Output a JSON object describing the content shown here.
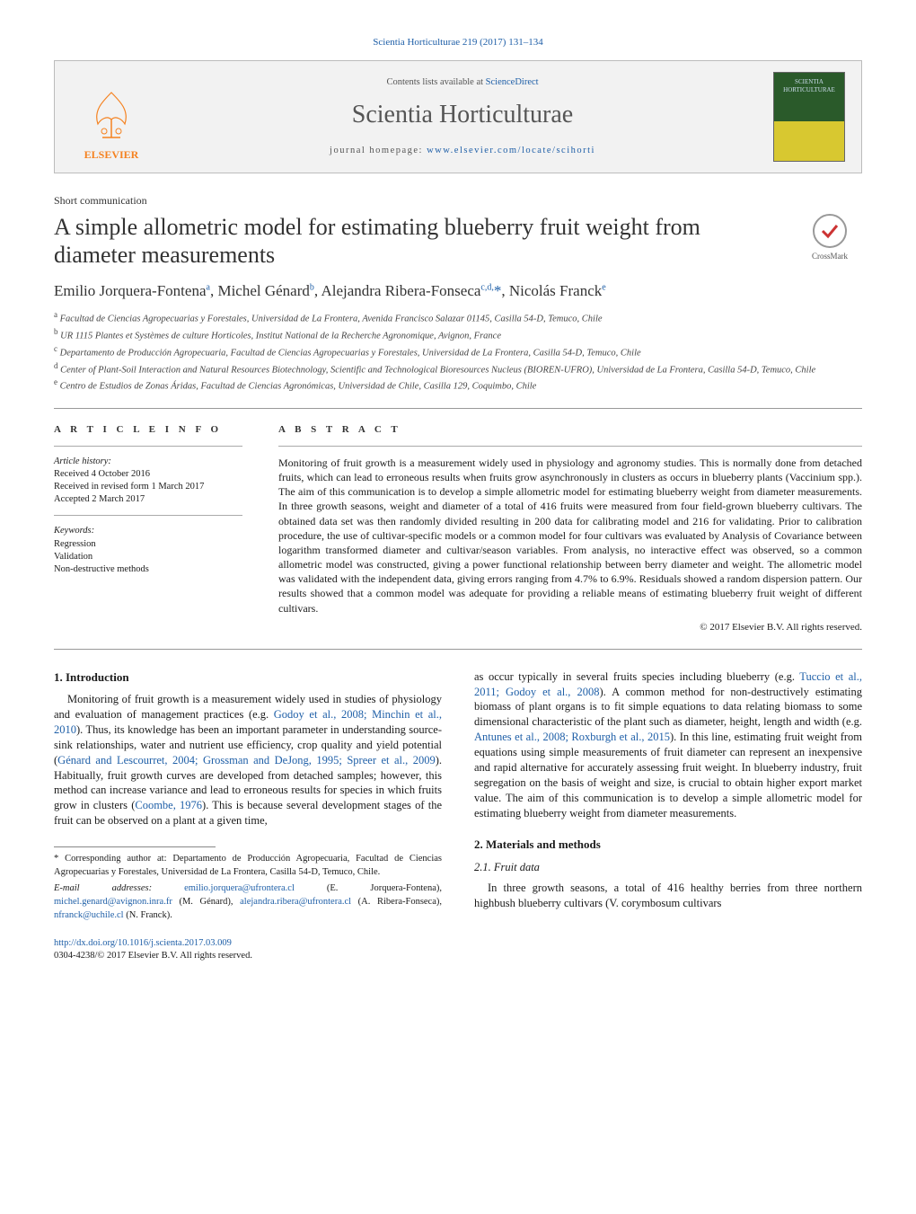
{
  "journal_ref": "Scientia Horticulturae 219 (2017) 131–134",
  "header": {
    "contents_prefix": "Contents lists available at ",
    "contents_link": "ScienceDirect",
    "journal_name": "Scientia Horticulturae",
    "homepage_prefix": "journal homepage: ",
    "homepage_url": "www.elsevier.com/locate/scihorti",
    "elsevier_label": "ELSEVIER",
    "cover_line1": "SCIENTIA",
    "cover_line2": "HORTICULTURAE"
  },
  "article_type": "Short communication",
  "title": "A simple allometric model for estimating blueberry fruit weight from diameter measurements",
  "crossmark_label": "CrossMark",
  "authors_html": "Emilio Jorquera-Fontena<sup>a</sup>, Michel Génard<sup>b</sup>, Alejandra Ribera-Fonseca<sup>c,d,</sup><span class='star'>*</span>, Nicolás Franck<sup>e</sup>",
  "affiliations": [
    {
      "sup": "a",
      "text": "Facultad de Ciencias Agropecuarias y Forestales, Universidad de La Frontera, Avenida Francisco Salazar 01145, Casilla 54-D, Temuco, Chile"
    },
    {
      "sup": "b",
      "text": "UR 1115 Plantes et Systèmes de culture Horticoles, Institut National de la Recherche Agronomique, Avignon, France"
    },
    {
      "sup": "c",
      "text": "Departamento de Producción Agropecuaria, Facultad de Ciencias Agropecuarias y Forestales, Universidad de La Frontera, Casilla 54-D, Temuco, Chile"
    },
    {
      "sup": "d",
      "text": "Center of Plant-Soil Interaction and Natural Resources Biotechnology, Scientific and Technological Bioresources Nucleus (BIOREN-UFRO), Universidad de La Frontera, Casilla 54-D, Temuco, Chile"
    },
    {
      "sup": "e",
      "text": "Centro de Estudios de Zonas Áridas, Facultad de Ciencias Agronómicas, Universidad de Chile, Casilla 129, Coquimbo, Chile"
    }
  ],
  "info": {
    "label": "A R T I C L E   I N F O",
    "history_label": "Article history:",
    "history": [
      "Received 4 October 2016",
      "Received in revised form 1 March 2017",
      "Accepted 2 March 2017"
    ],
    "keywords_label": "Keywords:",
    "keywords": [
      "Regression",
      "Validation",
      "Non-destructive methods"
    ]
  },
  "abstract": {
    "label": "A B S T R A C T",
    "text": "Monitoring of fruit growth is a measurement widely used in physiology and agronomy studies. This is normally done from detached fruits, which can lead to erroneous results when fruits grow asynchronously in clusters as occurs in blueberry plants (Vaccinium spp.). The aim of this communication is to develop a simple allometric model for estimating blueberry weight from diameter measurements. In three growth seasons, weight and diameter of a total of 416 fruits were measured from four field-grown blueberry cultivars. The obtained data set was then randomly divided resulting in 200 data for calibrating model and 216 for validating. Prior to calibration procedure, the use of cultivar-specific models or a common model for four cultivars was evaluated by Analysis of Covariance between logarithm transformed diameter and cultivar/season variables. From analysis, no interactive effect was observed, so a common allometric model was constructed, giving a power functional relationship between berry diameter and weight. The allometric model was validated with the independent data, giving errors ranging from 4.7% to 6.9%. Residuals showed a random dispersion pattern. Our results showed that a common model was adequate for providing a reliable means of estimating blueberry fruit weight of different cultivars.",
    "copyright": "© 2017 Elsevier B.V. All rights reserved."
  },
  "body": {
    "intro_head": "1. Introduction",
    "intro_p1_pre": "Monitoring of fruit growth is a measurement widely used in studies of physiology and evaluation of management practices (e.g. ",
    "intro_p1_link1": "Godoy et al., 2008; Minchin et al., 2010",
    "intro_p1_mid1": "). Thus, its knowledge has been an important parameter in understanding source-sink relationships, water and nutrient use efficiency, crop quality and yield potential (",
    "intro_p1_link2": "Génard and Lescourret, 2004; Grossman and DeJong, 1995; Spreer et al., 2009",
    "intro_p1_mid2": "). Habitually, fruit growth curves are developed from detached samples; however, this method can increase variance and lead to erroneous results for species in which fruits grow in clusters (",
    "intro_p1_link3": "Coombe, 1976",
    "intro_p1_end": "). This is because several development stages of the fruit can be observed on a plant at a given time,",
    "intro_p2_pre": "as occur typically in several fruits species including blueberry (e.g. ",
    "intro_p2_link1": "Tuccio et al., 2011; Godoy et al., 2008",
    "intro_p2_mid1": "). A common method for non-destructively estimating biomass of plant organs is to fit simple equations to data relating biomass to some dimensional characteristic of the plant such as diameter, height, length and width (e.g. ",
    "intro_p2_link2": "Antunes et al., 2008; Roxburgh et al., 2015",
    "intro_p2_end": "). In this line, estimating fruit weight from equations using simple measurements of fruit diameter can represent an inexpensive and rapid alternative for accurately assessing fruit weight. In blueberry industry, fruit segregation on the basis of weight and size, is crucial to obtain higher export market value. The aim of this communication is to develop a simple allometric model for estimating blueberry weight from diameter measurements.",
    "mm_head": "2. Materials and methods",
    "mm_sub": "2.1. Fruit data",
    "mm_p": "In three growth seasons, a total of 416 healthy berries from three northern highbush blueberry cultivars (V. corymbosum cultivars"
  },
  "footnotes": {
    "corr_pre": "* Corresponding author at: Departamento de Producción Agropecuaria, Facultad de Ciencias Agropecuarias y Forestales, Universidad de La Frontera, Casilla 54-D, Temuco, Chile.",
    "email_label": "E-mail addresses: ",
    "emails": [
      {
        "addr": "emilio.jorquera@ufrontera.cl",
        "who": "(E. Jorquera-Fontena)"
      },
      {
        "addr": "michel.genard@avignon.inra.fr",
        "who": "(M. Génard)"
      },
      {
        "addr": "alejandra.ribera@ufrontera.cl",
        "who": "(A. Ribera-Fonseca)"
      },
      {
        "addr": "nfranck@uchile.cl",
        "who": "(N. Franck)"
      }
    ]
  },
  "doi": {
    "url": "http://dx.doi.org/10.1016/j.scienta.2017.03.009",
    "issn_line": "0304-4238/© 2017 Elsevier B.V. All rights reserved."
  },
  "colors": {
    "link": "#2060a8",
    "elsevier": "#f58220"
  }
}
